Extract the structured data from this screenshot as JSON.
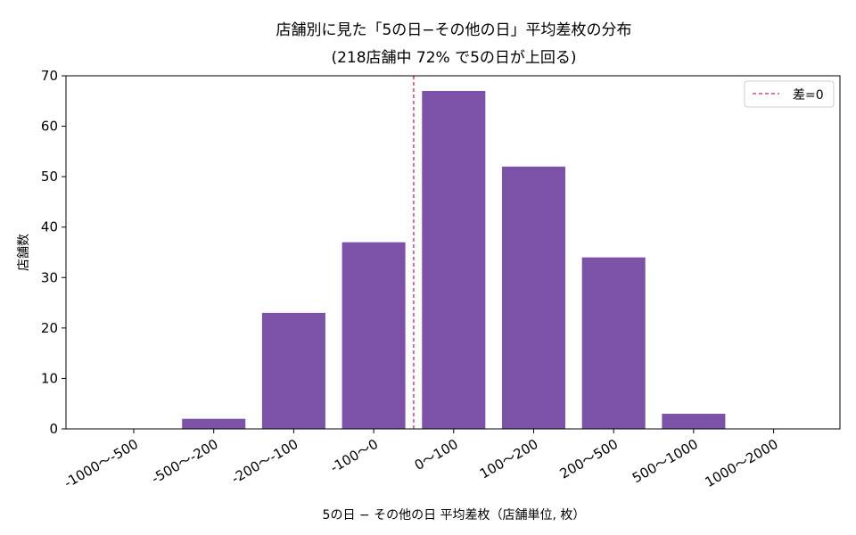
{
  "chart_data": {
    "type": "bar",
    "title": "店舗別に見た「5の日−その他の日」平均差枚の分布",
    "subtitle": "(218店舗中 72% で5の日が上回る)",
    "xlabel": "5の日 − その他の日 平均差枚（店舗単位, 枚）",
    "ylabel": "店舗数",
    "categories": [
      "-1000〜-500",
      "-500〜-200",
      "-200〜-100",
      "-100〜0",
      "0〜100",
      "100〜200",
      "200〜500",
      "500〜1000",
      "1000〜2000"
    ],
    "values": [
      0,
      2,
      23,
      37,
      67,
      52,
      34,
      3,
      0
    ],
    "ylim": [
      0,
      70
    ],
    "yticks": [
      0,
      10,
      20,
      30,
      40,
      50,
      60,
      70
    ],
    "reference_line": {
      "label": "差=0",
      "position_between_categories": [
        3,
        4
      ],
      "color": "#d62748",
      "style": "dashed"
    },
    "bar_color": "#7b52a8",
    "legend": {
      "placement": "top-right",
      "entries": [
        "差=0"
      ]
    },
    "grid": false
  }
}
